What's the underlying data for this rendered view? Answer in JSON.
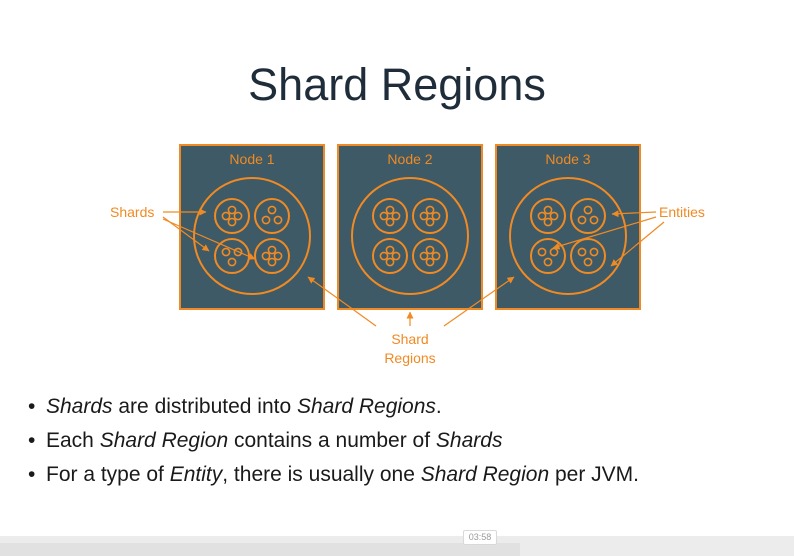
{
  "title": "Shard Regions",
  "diagram": {
    "nodes": [
      {
        "label": "Node 1"
      },
      {
        "label": "Node 2"
      },
      {
        "label": "Node 3"
      }
    ],
    "callouts": {
      "shards": "Shards",
      "entities": "Entities",
      "shard_regions_line1": "Shard",
      "shard_regions_line2": "Regions"
    },
    "colors": {
      "node_fill": "#3d5a66",
      "accent": "#f08a24"
    }
  },
  "bullets": [
    [
      {
        "t": "Shards",
        "i": true
      },
      {
        "t": " are distributed into ",
        "i": false
      },
      {
        "t": "Shard Regions",
        "i": true
      },
      {
        "t": ".",
        "i": false
      }
    ],
    [
      {
        "t": "Each ",
        "i": false
      },
      {
        "t": "Shard Region",
        "i": true
      },
      {
        "t": " contains a number of ",
        "i": false
      },
      {
        "t": "Shards",
        "i": true
      }
    ],
    [
      {
        "t": "For a type of ",
        "i": false
      },
      {
        "t": "Entity",
        "i": true
      },
      {
        "t": ", there is usually one ",
        "i": false
      },
      {
        "t": "Shard Region",
        "i": true
      },
      {
        "t": " per JVM.",
        "i": false
      }
    ]
  ],
  "player": {
    "timestamp": "03:58"
  }
}
